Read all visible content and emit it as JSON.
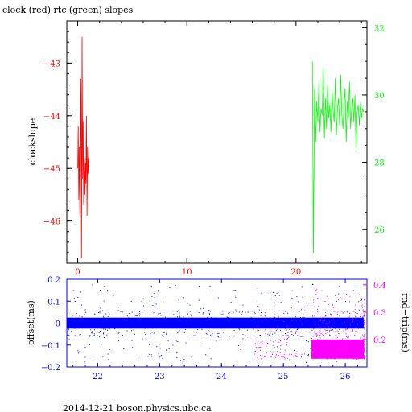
{
  "top": {
    "title": "clock (red) rtc (green) slopes",
    "ylabel": "clockslope",
    "colors": {
      "clock": "#ff0000",
      "rtc": "#00ff00",
      "axis": "#000000"
    },
    "x_ticks": [
      "0",
      "10",
      "20"
    ],
    "y_left_ticks": [
      "−43",
      "−44",
      "−45",
      "−46"
    ],
    "y_right_ticks": [
      "32",
      "30",
      "28",
      "26"
    ]
  },
  "bottom": {
    "ylabel_left": "offset(ms)",
    "ylabel_right": "rnd−trip(ms)",
    "colors": {
      "offset": "#0000ff",
      "rtt": "#ff00ff"
    },
    "x_ticks": [
      "22",
      "23",
      "24",
      "25",
      "26"
    ],
    "y_left_ticks": [
      "0.2",
      "0.1",
      "0",
      "−0.1",
      "−0.2"
    ],
    "y_right_ticks": [
      "0.4",
      "0.3",
      "0.2"
    ]
  },
  "footer": "2014-12-21 boson.physics.ubc.ca",
  "chart_data": [
    {
      "type": "line",
      "title": "clock (red) rtc (green) slopes",
      "ylabel": "clockslope",
      "xlim": [
        -1,
        26.5
      ],
      "ylim_left": [
        -46.8,
        -42.2
      ],
      "ylim_right": [
        25,
        32.2
      ],
      "series": [
        {
          "color": "#ff0000",
          "axis": "left",
          "x": [
            0.0,
            0.05,
            0.1,
            0.15,
            0.2,
            0.25,
            0.3,
            0.35,
            0.4,
            0.45,
            0.5,
            0.55,
            0.6,
            0.65,
            0.7,
            0.75,
            0.8,
            0.85,
            0.9,
            0.95,
            1.0
          ],
          "y": [
            -45.0,
            -44.2,
            -45.6,
            -44.6,
            -45.9,
            -44.4,
            -43.3,
            -46.7,
            -42.5,
            -45.2,
            -44.1,
            -45.7,
            -44.8,
            -45.5,
            -44.9,
            -45.3,
            -44.0,
            -45.9,
            -44.6,
            -45.1,
            -44.8
          ]
        },
        {
          "color": "#00ff00",
          "axis": "right",
          "x": [
            21.5,
            21.6,
            21.7,
            21.8,
            21.9,
            22.0,
            22.1,
            22.2,
            22.3,
            22.4,
            22.5,
            22.6,
            22.7,
            22.8,
            22.9,
            23.0,
            23.1,
            23.2,
            23.3,
            23.4,
            23.5,
            23.6,
            23.7,
            23.8,
            23.9,
            24.0,
            24.1,
            24.2,
            24.3,
            24.4,
            24.5,
            24.6,
            24.7,
            24.8,
            24.9,
            25.0,
            25.1,
            25.2,
            25.3,
            25.4,
            25.5,
            25.6,
            25.7,
            25.8,
            25.9,
            26.0,
            26.1,
            26.2
          ],
          "y": [
            31.0,
            25.3,
            30.2,
            28.6,
            29.8,
            29.2,
            30.4,
            28.9,
            29.6,
            29.4,
            30.8,
            28.7,
            29.9,
            29.0,
            30.3,
            29.3,
            29.7,
            28.9,
            30.1,
            29.5,
            29.2,
            30.5,
            28.8,
            29.6,
            29.9,
            29.1,
            30.6,
            29.4,
            29.0,
            29.7,
            30.2,
            28.6,
            29.8,
            29.3,
            30.4,
            29.0,
            29.6,
            29.9,
            29.2,
            30.0,
            28.4,
            29.5,
            29.7,
            29.1,
            29.8,
            29.3,
            29.6,
            29.5
          ]
        }
      ]
    },
    {
      "type": "scatter",
      "xlim": [
        21.5,
        26.35
      ],
      "ylim_left": [
        -0.2,
        0.2
      ],
      "ylim_right": [
        0.1,
        0.42
      ],
      "series": [
        {
          "color": "#0000ff",
          "axis": "left",
          "x_range": [
            21.5,
            26.3
          ],
          "band_center": 0.0,
          "band_halfwidth": 0.025,
          "outlier_range": [
            -0.18,
            0.18
          ]
        },
        {
          "color": "#ff00ff",
          "axis": "right",
          "x_range": [
            25.45,
            26.3
          ],
          "band": [
            0.13,
            0.2
          ],
          "outlier_range": [
            0.13,
            0.4
          ]
        }
      ]
    }
  ]
}
